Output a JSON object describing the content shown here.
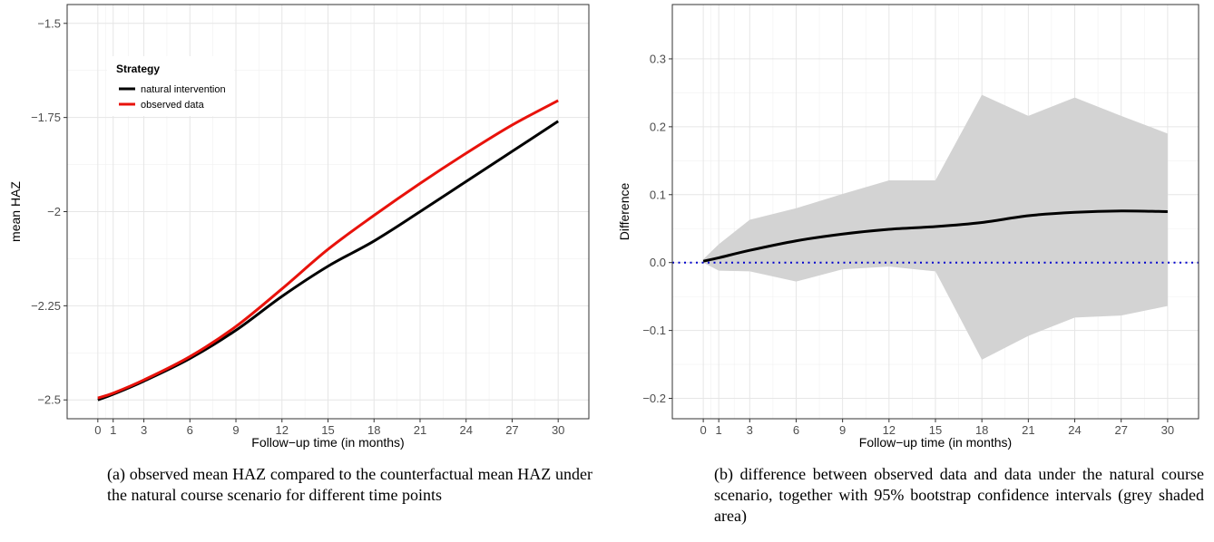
{
  "chart_data": [
    {
      "type": "line",
      "title": "",
      "xlabel": "Follow−up time (in months)",
      "ylabel": "mean HAZ",
      "xlim": [
        -2,
        32
      ],
      "ylim": [
        -2.55,
        -1.45
      ],
      "xticks": [
        0,
        1,
        3,
        6,
        9,
        12,
        15,
        18,
        21,
        24,
        27,
        30
      ],
      "xtick_labels": [
        "0",
        "1",
        "3",
        "6",
        "9",
        "12",
        "15",
        "18",
        "21",
        "24",
        "27",
        "30"
      ],
      "yticks": [
        -2.5,
        -2.25,
        -2,
        -1.75,
        -1.5
      ],
      "ytick_labels": [
        "−2.5",
        "−2.25",
        "−2",
        "−1.75",
        "−1.5"
      ],
      "grid": true,
      "legend": {
        "title": "Strategy",
        "placement": "top-left",
        "entries": [
          "natural intervention",
          "observed data"
        ]
      },
      "series": [
        {
          "name": "natural intervention",
          "color": "#000000",
          "x": [
            0,
            1,
            3,
            6,
            9,
            12,
            15,
            18,
            21,
            24,
            27,
            30
          ],
          "y": [
            -2.5,
            -2.485,
            -2.45,
            -2.39,
            -2.315,
            -2.225,
            -2.145,
            -2.078,
            -2.0,
            -1.92,
            -1.84,
            -1.76
          ]
        },
        {
          "name": "observed data",
          "color": "#e8120b",
          "x": [
            0,
            1,
            3,
            6,
            9,
            12,
            15,
            18,
            21,
            24,
            27,
            30
          ],
          "y": [
            -2.495,
            -2.482,
            -2.447,
            -2.385,
            -2.305,
            -2.205,
            -2.1,
            -2.01,
            -1.925,
            -1.845,
            -1.77,
            -1.705
          ]
        }
      ]
    },
    {
      "type": "line",
      "title": "",
      "xlabel": "Follow−up time (in months)",
      "ylabel": "Difference",
      "xlim": [
        -2,
        32
      ],
      "ylim": [
        -0.23,
        0.38
      ],
      "xticks": [
        0,
        1,
        3,
        6,
        9,
        12,
        15,
        18,
        21,
        24,
        27,
        30
      ],
      "xtick_labels": [
        "0",
        "1",
        "3",
        "6",
        "9",
        "12",
        "15",
        "18",
        "21",
        "24",
        "27",
        "30"
      ],
      "yticks": [
        -0.2,
        -0.1,
        0.0,
        0.1,
        0.2,
        0.3
      ],
      "ytick_labels": [
        "−0.2",
        "−0.1",
        "0.0",
        "0.1",
        "0.2",
        "0.3"
      ],
      "grid": true,
      "reference_line": {
        "y": 0,
        "color": "#0000cc",
        "style": "dotted"
      },
      "band_color": "#d3d3d3",
      "line_color": "#000000",
      "series": [
        {
          "x": [
            0,
            1,
            3,
            6,
            9,
            12,
            15,
            18,
            21,
            24,
            27,
            30
          ],
          "y": [
            0.002,
            0.007,
            0.018,
            0.032,
            0.042,
            0.049,
            0.053,
            0.059,
            0.069,
            0.074,
            0.076,
            0.075
          ],
          "lower": [
            0.0,
            -0.012,
            -0.013,
            -0.028,
            -0.01,
            -0.006,
            -0.013,
            -0.143,
            -0.108,
            -0.081,
            -0.078,
            -0.064
          ],
          "upper": [
            0.005,
            0.027,
            0.063,
            0.08,
            0.101,
            0.121,
            0.121,
            0.247,
            0.216,
            0.243,
            0.216,
            0.19
          ]
        }
      ]
    }
  ],
  "captions": {
    "a": "(a) observed mean HAZ compared to the counterfactual mean HAZ under the natural course scenario for different time points",
    "b": "(b) difference between observed data and data under the natural course scenario, together with 95% bootstrap confidence intervals (grey shaded area)"
  }
}
